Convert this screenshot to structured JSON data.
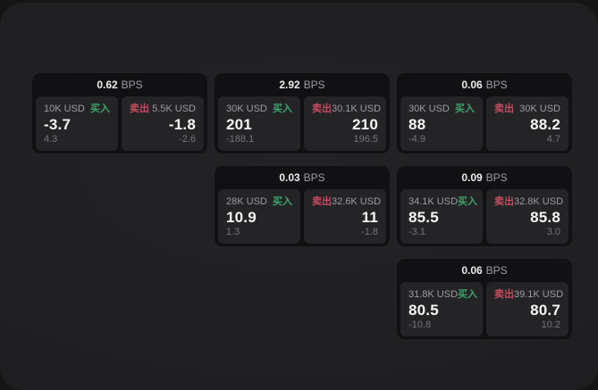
{
  "labels": {
    "buy": "买入",
    "sell": "卖出",
    "unit": "BPS"
  },
  "colors": {
    "buy_green": "#3ea46a",
    "sell_red": "#c74b5e",
    "card_bg": "#111113",
    "panel_bg": "#242427",
    "page_bg": "#202022",
    "backdrop": "#151516",
    "label_gray": "#9c9da1",
    "sub_gray": "#747578",
    "value_white": "#f5f5f6"
  },
  "cards": [
    {
      "bps": "0.62",
      "col": 0,
      "row": 0,
      "buy": {
        "size": "10K USD",
        "value": "-3.7",
        "sub": "4.3"
      },
      "sell": {
        "size": "5.5K USD",
        "value": "-1.8",
        "sub": "-2.6"
      }
    },
    {
      "bps": "2.92",
      "col": 1,
      "row": 0,
      "buy": {
        "size": "30K USD",
        "value": "201",
        "sub": "-188.1"
      },
      "sell": {
        "size": "30.1K USD",
        "value": "210",
        "sub": "196.5"
      }
    },
    {
      "bps": "0.06",
      "col": 2,
      "row": 0,
      "buy": {
        "size": "30K USD",
        "value": "88",
        "sub": "-4.9"
      },
      "sell": {
        "size": "30K USD",
        "value": "88.2",
        "sub": "4.7"
      }
    },
    {
      "bps": "0.03",
      "col": 1,
      "row": 1,
      "buy": {
        "size": "28K USD",
        "value": "10.9",
        "sub": "1.3"
      },
      "sell": {
        "size": "32.6K USD",
        "value": "11",
        "sub": "-1.8"
      }
    },
    {
      "bps": "0.09",
      "col": 2,
      "row": 1,
      "buy": {
        "size": "34.1K USD",
        "value": "85.5",
        "sub": "-3.1"
      },
      "sell": {
        "size": "32.8K USD",
        "value": "85.8",
        "sub": "3.0"
      }
    },
    {
      "bps": "0.06",
      "col": 2,
      "row": 2,
      "buy": {
        "size": "31.8K USD",
        "value": "80.5",
        "sub": "-10.8"
      },
      "sell": {
        "size": "39.1K USD",
        "value": "80.7",
        "sub": "10.2"
      }
    }
  ]
}
